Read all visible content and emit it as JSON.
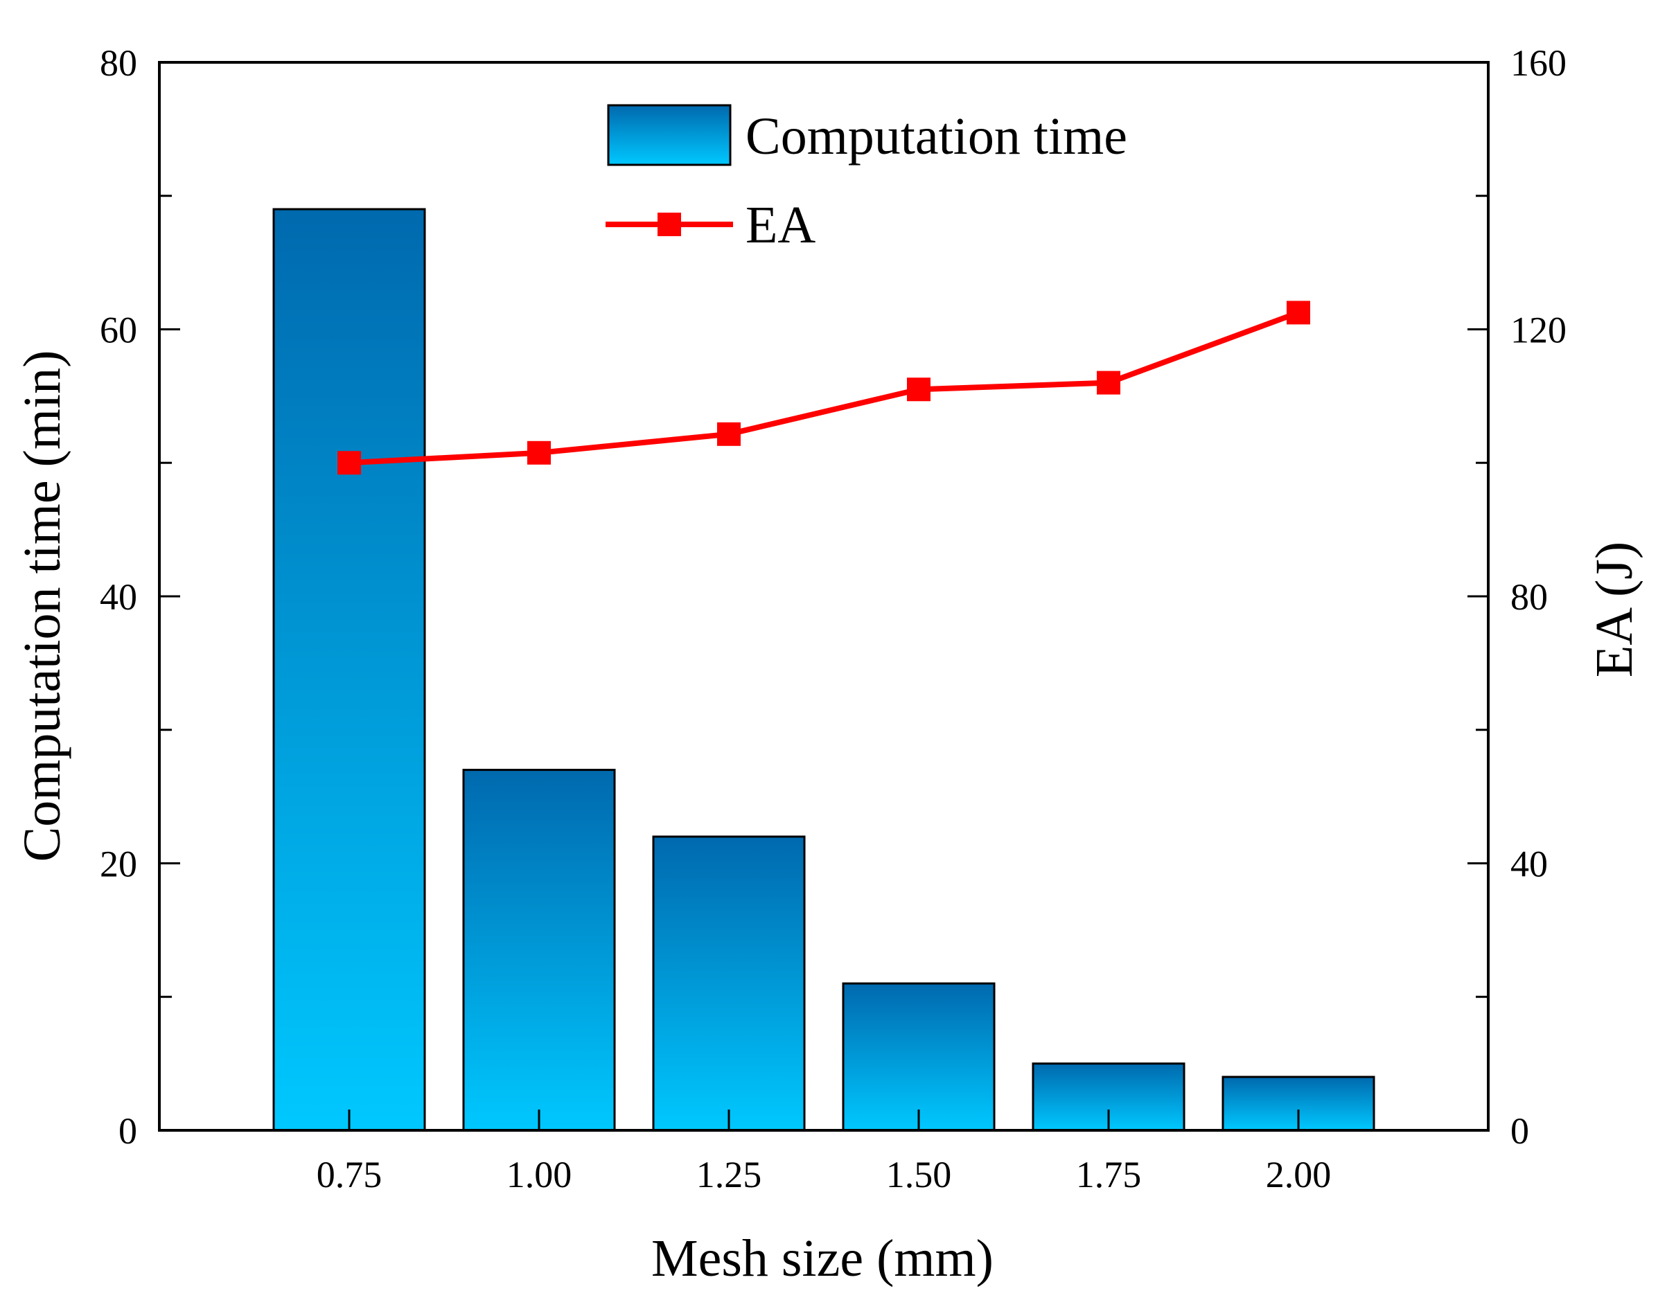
{
  "chart_data": {
    "type": "bar",
    "categories": [
      "0.75",
      "1.00",
      "1.25",
      "1.50",
      "1.75",
      "2.00"
    ],
    "xlabel": "Mesh size (mm)",
    "ylabel": "Computation time (min)",
    "y2label": "EA (J)",
    "ylim": [
      0,
      80
    ],
    "y2lim": [
      0,
      160
    ],
    "yticks": [
      "0",
      "20",
      "40",
      "60",
      "80"
    ],
    "y2ticks": [
      "0",
      "40",
      "80",
      "120",
      "160"
    ],
    "grid": false,
    "legend_position": "top-center",
    "series": [
      {
        "name": "Computation time",
        "type": "bar",
        "axis": "left",
        "values": [
          69,
          27,
          22,
          11,
          5,
          4
        ],
        "color_top": "#0069ae",
        "color_bottom": "#00c8ff"
      },
      {
        "name": "EA",
        "type": "line",
        "axis": "right",
        "marker": "square",
        "values": [
          100,
          101.5,
          104.3,
          111,
          112,
          122.5
        ],
        "color": "#ff0000"
      }
    ]
  }
}
